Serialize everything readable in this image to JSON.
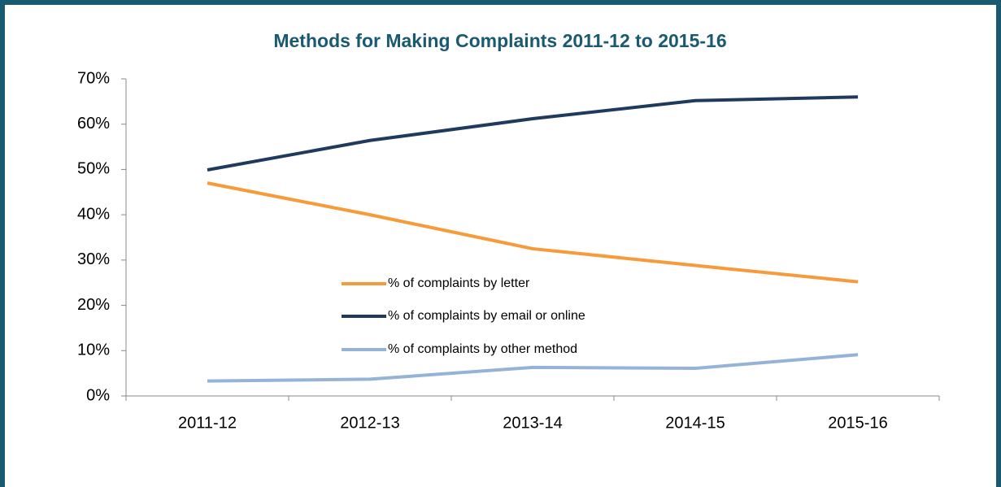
{
  "chart_data": {
    "type": "line",
    "title": "Methods for Making Complaints 2011-12 to 2015-16",
    "categories": [
      "2011-12",
      "2012-13",
      "2013-14",
      "2014-15",
      "2015-16"
    ],
    "series": [
      {
        "name": "% of complaints by letter",
        "color": "#f79a3a",
        "values": [
          47,
          40,
          32.5,
          28.8,
          25.2
        ]
      },
      {
        "name": "% of complaints by email or online",
        "color": "#1f3a5c",
        "values": [
          49.9,
          56.4,
          61.2,
          65.2,
          66
        ]
      },
      {
        "name": "% of complaints by other method",
        "color": "#95b3d7",
        "values": [
          3.3,
          3.7,
          6.3,
          6.1,
          9.1
        ]
      }
    ],
    "ylim": [
      0,
      70
    ],
    "yticks": [
      {
        "value": 0,
        "label": "0%"
      },
      {
        "value": 10,
        "label": "10%"
      },
      {
        "value": 20,
        "label": "20%"
      },
      {
        "value": 30,
        "label": "30%"
      },
      {
        "value": 40,
        "label": "40%"
      },
      {
        "value": 50,
        "label": "50%"
      },
      {
        "value": 60,
        "label": "60%"
      },
      {
        "value": 70,
        "label": "70%"
      }
    ],
    "grid": false
  }
}
